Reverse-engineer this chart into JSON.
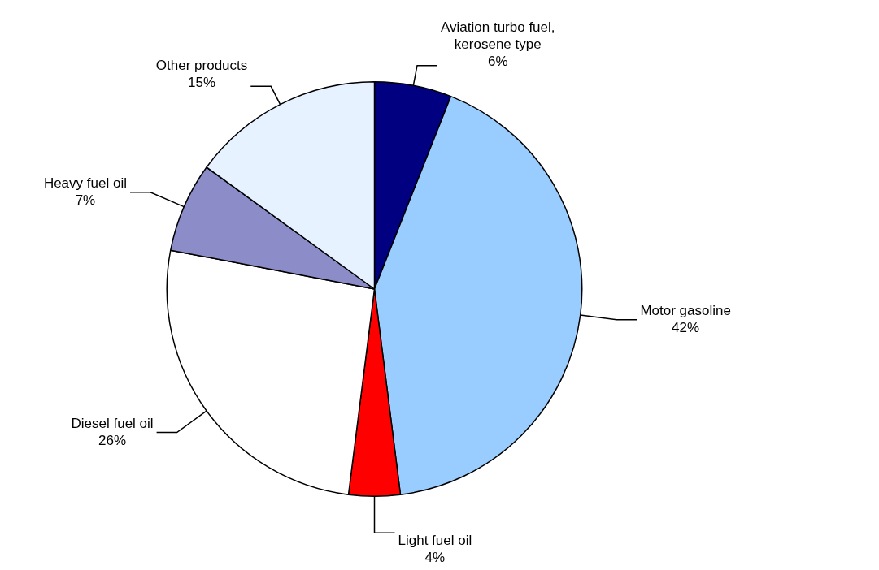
{
  "chart_data": {
    "type": "pie",
    "categories": [
      "Aviation turbo fuel, kerosene type",
      "Motor gasoline",
      "Light fuel oil",
      "Diesel fuel oil",
      "Heavy fuel oil",
      "Other products"
    ],
    "values": [
      6,
      42,
      4,
      26,
      7,
      15
    ],
    "value_labels": [
      "6%",
      "42%",
      "4%",
      "26%",
      "7%",
      "15%"
    ],
    "colors": [
      "#000080",
      "#99ccff",
      "#ff0000",
      "#ffffff",
      "#8c8cc8",
      "#e6f2ff"
    ],
    "legend": false
  }
}
